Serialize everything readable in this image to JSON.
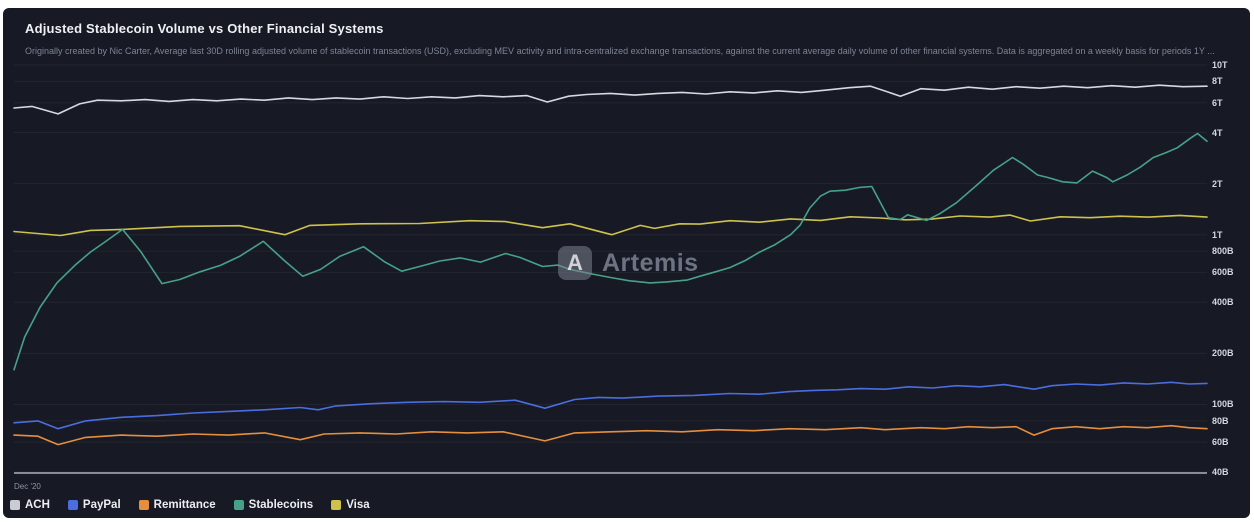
{
  "panel": {
    "title": "Adjusted Stablecoin Volume vs Other Financial Systems",
    "subtitle": "Originally created by Nic Carter, Average last 30D rolling adjusted volume of stablecoin transactions (USD), excluding MEV activity and intra-centralized exchange transactions, against the current average daily volume of other financial systems. Data is aggregated on a weekly basis for periods 1Y ...",
    "background_color": "#171a24"
  },
  "watermark": {
    "text": "Artemis",
    "logo_icon": "artemis-logo",
    "logo_glyph": "A"
  },
  "x_axis": {
    "first_label": "Dec '20"
  },
  "y_axis": {
    "scale": "log",
    "unit": "USD",
    "ticks": [
      {
        "label": "10T",
        "value_B": 10000
      },
      {
        "label": "8T",
        "value_B": 8000
      },
      {
        "label": "6T",
        "value_B": 6000
      },
      {
        "label": "4T",
        "value_B": 4000
      },
      {
        "label": "2T",
        "value_B": 2000
      },
      {
        "label": "1T",
        "value_B": 1000
      },
      {
        "label": "800B",
        "value_B": 800
      },
      {
        "label": "600B",
        "value_B": 600
      },
      {
        "label": "400B",
        "value_B": 400
      },
      {
        "label": "200B",
        "value_B": 200
      },
      {
        "label": "100B",
        "value_B": 100
      },
      {
        "label": "80B",
        "value_B": 80
      },
      {
        "label": "60B",
        "value_B": 60
      },
      {
        "label": "40B",
        "value_B": 40
      }
    ]
  },
  "legend": [
    {
      "label": "ACH",
      "color": "#c9ccd2"
    },
    {
      "label": "PayPal",
      "color": "#4a6de0"
    },
    {
      "label": "Remittance",
      "color": "#e78e3d"
    },
    {
      "label": "Stablecoins",
      "color": "#47a189"
    },
    {
      "label": "Visa",
      "color": "#cfc24c"
    }
  ],
  "chart_data": {
    "type": "line",
    "title": "Adjusted Stablecoin Volume vs Other Financial Systems",
    "x_unit": "percent_of_plot_width",
    "x_start_label": "Dec '20",
    "y_unit": "billions_USD",
    "y_scale": "log",
    "ylim_B": [
      40,
      10000
    ],
    "grid": "horizontal",
    "legend_position": "bottom-left",
    "series": [
      {
        "name": "ACH",
        "color": "#d6d9df",
        "points": [
          [
            0,
            5580
          ],
          [
            1.5,
            5700
          ],
          [
            3.7,
            5150
          ],
          [
            5.5,
            5900
          ],
          [
            7,
            6200
          ],
          [
            9,
            6150
          ],
          [
            11,
            6250
          ],
          [
            13,
            6100
          ],
          [
            15,
            6250
          ],
          [
            17,
            6150
          ],
          [
            19,
            6300
          ],
          [
            21,
            6200
          ],
          [
            23,
            6400
          ],
          [
            25,
            6250
          ],
          [
            27,
            6400
          ],
          [
            29,
            6300
          ],
          [
            31,
            6500
          ],
          [
            33,
            6350
          ],
          [
            35,
            6500
          ],
          [
            37,
            6400
          ],
          [
            39,
            6600
          ],
          [
            41,
            6500
          ],
          [
            43,
            6600
          ],
          [
            44.7,
            6050
          ],
          [
            46.5,
            6550
          ],
          [
            48,
            6700
          ],
          [
            50,
            6800
          ],
          [
            52,
            6650
          ],
          [
            54,
            6800
          ],
          [
            56,
            6900
          ],
          [
            58,
            6750
          ],
          [
            60,
            6950
          ],
          [
            62,
            6850
          ],
          [
            64,
            7050
          ],
          [
            66,
            6900
          ],
          [
            68,
            7100
          ],
          [
            70,
            7350
          ],
          [
            71.8,
            7500
          ],
          [
            74.3,
            6550
          ],
          [
            76,
            7250
          ],
          [
            78,
            7100
          ],
          [
            80,
            7400
          ],
          [
            82,
            7200
          ],
          [
            84,
            7450
          ],
          [
            86,
            7300
          ],
          [
            88,
            7500
          ],
          [
            90,
            7350
          ],
          [
            92,
            7550
          ],
          [
            94,
            7400
          ],
          [
            96,
            7600
          ],
          [
            98,
            7450
          ],
          [
            100,
            7500
          ]
        ]
      },
      {
        "name": "PayPal",
        "color": "#4a6de0",
        "points": [
          [
            0,
            78
          ],
          [
            2,
            80
          ],
          [
            3.7,
            72
          ],
          [
            6,
            80
          ],
          [
            9,
            84
          ],
          [
            12,
            86
          ],
          [
            15,
            89
          ],
          [
            18,
            91
          ],
          [
            21,
            93
          ],
          [
            24,
            96
          ],
          [
            25.5,
            93
          ],
          [
            27,
            98
          ],
          [
            30,
            101
          ],
          [
            33,
            103
          ],
          [
            36,
            104
          ],
          [
            39,
            103
          ],
          [
            42,
            106
          ],
          [
            44.5,
            95
          ],
          [
            47,
            107
          ],
          [
            49,
            110
          ],
          [
            51,
            109
          ],
          [
            54,
            112
          ],
          [
            57,
            113
          ],
          [
            60,
            116
          ],
          [
            62.5,
            115
          ],
          [
            65,
            119
          ],
          [
            67,
            121
          ],
          [
            69,
            122
          ],
          [
            71,
            124
          ],
          [
            73,
            123
          ],
          [
            75,
            127
          ],
          [
            77,
            125
          ],
          [
            79,
            129
          ],
          [
            81,
            127
          ],
          [
            83,
            131
          ],
          [
            85.5,
            123
          ],
          [
            87,
            129
          ],
          [
            89,
            132
          ],
          [
            91,
            130
          ],
          [
            93,
            134
          ],
          [
            95,
            132
          ],
          [
            97,
            135
          ],
          [
            98.5,
            132
          ],
          [
            100,
            133
          ]
        ]
      },
      {
        "name": "Remittance",
        "color": "#e78e3d",
        "points": [
          [
            0,
            66
          ],
          [
            2,
            65
          ],
          [
            3.7,
            58
          ],
          [
            6,
            64
          ],
          [
            9,
            66
          ],
          [
            12,
            65
          ],
          [
            15,
            67
          ],
          [
            18,
            66
          ],
          [
            21,
            68
          ],
          [
            24,
            62
          ],
          [
            26,
            67
          ],
          [
            29,
            68
          ],
          [
            32,
            67
          ],
          [
            35,
            69
          ],
          [
            38,
            68
          ],
          [
            41,
            69
          ],
          [
            44.5,
            61
          ],
          [
            47,
            68
          ],
          [
            50,
            69
          ],
          [
            53,
            70
          ],
          [
            56,
            69
          ],
          [
            59,
            71
          ],
          [
            62,
            70
          ],
          [
            65,
            72
          ],
          [
            68,
            71
          ],
          [
            71,
            73
          ],
          [
            73,
            71
          ],
          [
            76,
            73
          ],
          [
            78,
            72
          ],
          [
            80,
            74
          ],
          [
            82,
            73
          ],
          [
            84,
            74
          ],
          [
            85.5,
            66
          ],
          [
            87,
            72
          ],
          [
            89,
            74
          ],
          [
            91,
            72
          ],
          [
            93,
            74
          ],
          [
            95,
            73
          ],
          [
            97,
            75
          ],
          [
            98.5,
            73
          ],
          [
            100,
            72
          ]
        ]
      },
      {
        "name": "Visa",
        "color": "#cfc24c",
        "points": [
          [
            0,
            1045
          ],
          [
            3.9,
            990
          ],
          [
            6.4,
            1060
          ],
          [
            9.1,
            1075
          ],
          [
            13.9,
            1120
          ],
          [
            18.9,
            1130
          ],
          [
            22.7,
            1000
          ],
          [
            24.8,
            1135
          ],
          [
            29,
            1160
          ],
          [
            34,
            1165
          ],
          [
            38.2,
            1210
          ],
          [
            41.2,
            1195
          ],
          [
            44.3,
            1100
          ],
          [
            46.6,
            1160
          ],
          [
            50.1,
            1000
          ],
          [
            52.5,
            1135
          ],
          [
            53.7,
            1090
          ],
          [
            55.8,
            1160
          ],
          [
            57.5,
            1155
          ],
          [
            60,
            1210
          ],
          [
            62.5,
            1185
          ],
          [
            65.1,
            1240
          ],
          [
            67.6,
            1215
          ],
          [
            70.1,
            1275
          ],
          [
            72.6,
            1255
          ],
          [
            74.7,
            1225
          ],
          [
            76.8,
            1235
          ],
          [
            79.3,
            1290
          ],
          [
            81.8,
            1270
          ],
          [
            83.5,
            1305
          ],
          [
            85.2,
            1205
          ],
          [
            87.7,
            1275
          ],
          [
            90.2,
            1260
          ],
          [
            92.7,
            1285
          ],
          [
            95.2,
            1270
          ],
          [
            97.7,
            1300
          ],
          [
            100,
            1270
          ]
        ]
      },
      {
        "name": "Stablecoins",
        "color": "#47a189",
        "points": [
          [
            0,
            160
          ],
          [
            0.9,
            250
          ],
          [
            2.2,
            375
          ],
          [
            3.6,
            520
          ],
          [
            5.1,
            660
          ],
          [
            6.4,
            790
          ],
          [
            7.6,
            905
          ],
          [
            9.1,
            1075
          ],
          [
            10.6,
            800
          ],
          [
            12.4,
            515
          ],
          [
            13.9,
            545
          ],
          [
            15.6,
            605
          ],
          [
            17.3,
            660
          ],
          [
            18.9,
            745
          ],
          [
            20.9,
            915
          ],
          [
            22.7,
            700
          ],
          [
            24.2,
            570
          ],
          [
            25.7,
            625
          ],
          [
            27.3,
            745
          ],
          [
            29.3,
            850
          ],
          [
            31.1,
            690
          ],
          [
            32.5,
            610
          ],
          [
            34,
            650
          ],
          [
            35.7,
            700
          ],
          [
            37.4,
            730
          ],
          [
            39.1,
            690
          ],
          [
            41.2,
            775
          ],
          [
            42.4,
            735
          ],
          [
            44.3,
            650
          ],
          [
            45.6,
            662
          ],
          [
            46.6,
            625
          ],
          [
            48.3,
            590
          ],
          [
            50,
            560
          ],
          [
            51.6,
            535
          ],
          [
            53.3,
            520
          ],
          [
            54.7,
            527
          ],
          [
            56.4,
            540
          ],
          [
            57.5,
            570
          ],
          [
            58.8,
            605
          ],
          [
            60,
            640
          ],
          [
            61.3,
            705
          ],
          [
            62.5,
            790
          ],
          [
            63.8,
            875
          ],
          [
            65.1,
            1000
          ],
          [
            65.9,
            1140
          ],
          [
            66.7,
            1435
          ],
          [
            67.6,
            1690
          ],
          [
            68.4,
            1805
          ],
          [
            69.7,
            1830
          ],
          [
            70.9,
            1900
          ],
          [
            71.9,
            1925
          ],
          [
            73.3,
            1260
          ],
          [
            74.3,
            1230
          ],
          [
            74.9,
            1310
          ],
          [
            76.5,
            1215
          ],
          [
            77.6,
            1330
          ],
          [
            79,
            1545
          ],
          [
            80.7,
            1960
          ],
          [
            82.1,
            2400
          ],
          [
            83.2,
            2700
          ],
          [
            83.7,
            2850
          ],
          [
            84.6,
            2600
          ],
          [
            85.8,
            2250
          ],
          [
            86.7,
            2170
          ],
          [
            87.9,
            2050
          ],
          [
            89.1,
            2020
          ],
          [
            90.4,
            2370
          ],
          [
            91.6,
            2170
          ],
          [
            92.1,
            2050
          ],
          [
            93.3,
            2250
          ],
          [
            94.4,
            2500
          ],
          [
            95.5,
            2850
          ],
          [
            96.6,
            3050
          ],
          [
            97.5,
            3250
          ],
          [
            98.6,
            3700
          ],
          [
            99.2,
            3950
          ],
          [
            100,
            3550
          ]
        ]
      }
    ]
  }
}
